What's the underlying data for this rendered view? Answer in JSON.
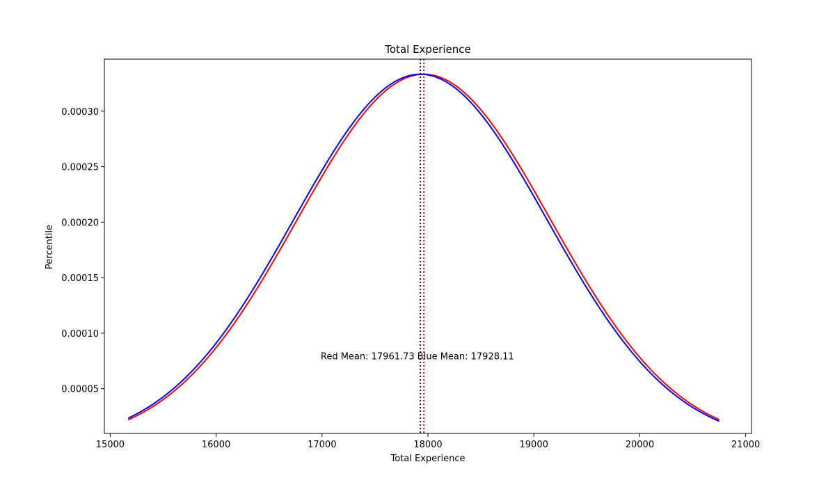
{
  "chart_data": {
    "type": "line",
    "title": "Total Experience",
    "xlabel": "Total Experience",
    "ylabel": "Percentile",
    "xlim": [
      14945,
      21055
    ],
    "ylim": [
      9.7e-06,
      0.0003469
    ],
    "grid": false,
    "x_ticks": [
      15000,
      16000,
      17000,
      18000,
      19000,
      20000,
      21000
    ],
    "x_tick_labels": [
      "15000",
      "16000",
      "17000",
      "18000",
      "19000",
      "20000",
      "21000"
    ],
    "y_ticks": [
      5e-05,
      0.0001,
      0.00015,
      0.0002,
      0.00025,
      0.0003
    ],
    "y_tick_labels": [
      "0.00005",
      "0.00010",
      "0.00015",
      "0.00020",
      "0.00025",
      "0.00030"
    ],
    "x_range": [
      15170,
      20750
    ],
    "series": [
      {
        "name": "Red",
        "color": "#ff0000",
        "mean": 17961.73,
        "std": 1197,
        "curve": "normal"
      },
      {
        "name": "Blue",
        "color": "#0000ff",
        "mean": 17928.11,
        "std": 1197,
        "curve": "normal"
      }
    ],
    "mean_lines": [
      {
        "x": 17961.73,
        "color": "#ff0000",
        "style": "dotted"
      },
      {
        "x": 17928.11,
        "color": "#0000ff",
        "style": "dotted"
      }
    ],
    "annotation": {
      "text": "Red Mean: 17961.73   Blue Mean: 17928.11",
      "x": 17900,
      "y": 7.65e-05
    }
  }
}
